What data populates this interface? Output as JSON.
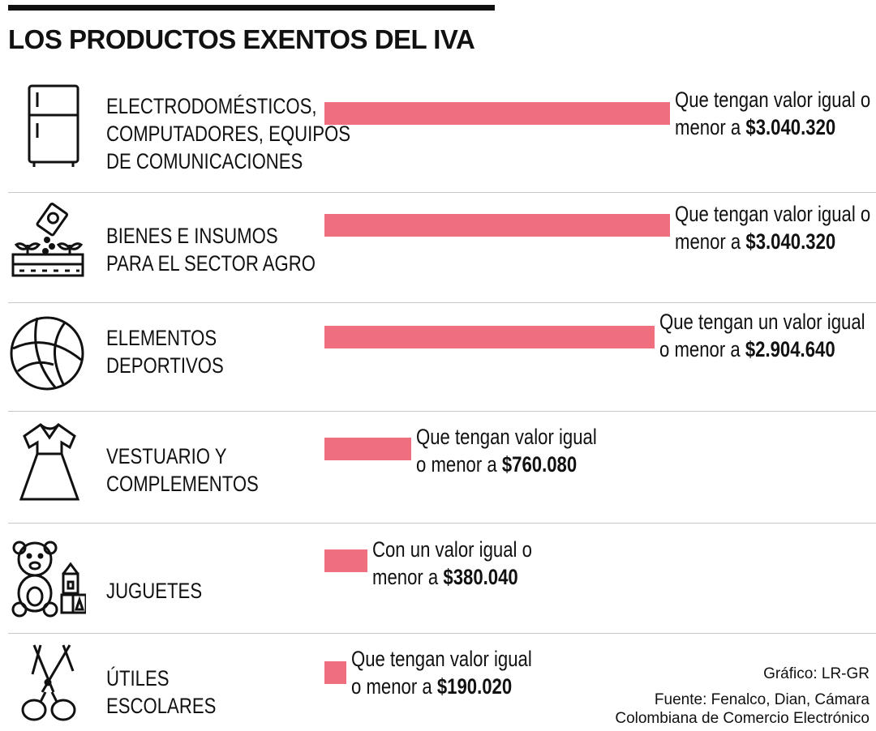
{
  "title": "LOS PRODUCTOS EXENTOS DEL IVA",
  "colors": {
    "bar": "#ef6f7f",
    "text": "#111111",
    "divider": "#c9c9c9"
  },
  "chart_data": {
    "type": "bar",
    "orientation": "horizontal",
    "unit": "COP",
    "categories": [
      "ELECTRODOMÉSTICOS, COMPUTADORES, EQUIPOS DE COMUNICACIONES",
      "BIENES E INSUMOS PARA EL SECTOR AGRO",
      "ELEMENTOS DEPORTIVOS",
      "VESTUARIO Y COMPLEMENTOS",
      "JUGUETES",
      "ÚTILES ESCOLARES"
    ],
    "values": [
      3040320,
      3040320,
      2904640,
      760080,
      380040,
      190020
    ]
  },
  "rows": [
    {
      "icon": "refrigerator-icon",
      "category_lines": [
        "ELECTRODOMÉSTICOS,",
        "COMPUTADORES, EQUIPOS",
        "DE COMUNICACIONES"
      ],
      "value": 3040320,
      "label_line1": "Que tengan valor igual o",
      "label_line2_prefix": "menor a ",
      "value_text": "$3.040.320"
    },
    {
      "icon": "seed-planting-icon",
      "category_lines": [
        "BIENES E INSUMOS",
        "PARA EL SECTOR AGRO"
      ],
      "value": 3040320,
      "label_line1": "Que tengan valor igual o",
      "label_line2_prefix": "menor a ",
      "value_text": "$3.040.320"
    },
    {
      "icon": "ball-icon",
      "category_lines": [
        "ELEMENTOS",
        "DEPORTIVOS"
      ],
      "value": 2904640,
      "label_line1": "Que tengan un valor igual",
      "label_line2_prefix": "o menor a ",
      "value_text": "$2.904.640"
    },
    {
      "icon": "dress-icon",
      "category_lines": [
        "VESTUARIO Y",
        "COMPLEMENTOS"
      ],
      "value": 760080,
      "label_line1": "Que tengan valor igual",
      "label_line2_prefix": "o menor a ",
      "value_text": "$760.080"
    },
    {
      "icon": "teddy-bear-icon",
      "category_lines": [
        "JUGUETES"
      ],
      "value": 380040,
      "label_line1": "Con un valor igual o",
      "label_line2_prefix": "menor a ",
      "value_text": "$380.040"
    },
    {
      "icon": "scissors-icon",
      "category_lines": [
        "ÚTILES",
        "ESCOLARES"
      ],
      "value": 190020,
      "label_line1": "Que tengan valor igual",
      "label_line2_prefix": "o menor a ",
      "value_text": "$190.020"
    }
  ],
  "credits": {
    "graphic": "Gráfico: LR-GR",
    "source_line1": "Fuente: Fenalco, Dian, Cámara",
    "source_line2": "Colombiana de Comercio Electrónico"
  }
}
